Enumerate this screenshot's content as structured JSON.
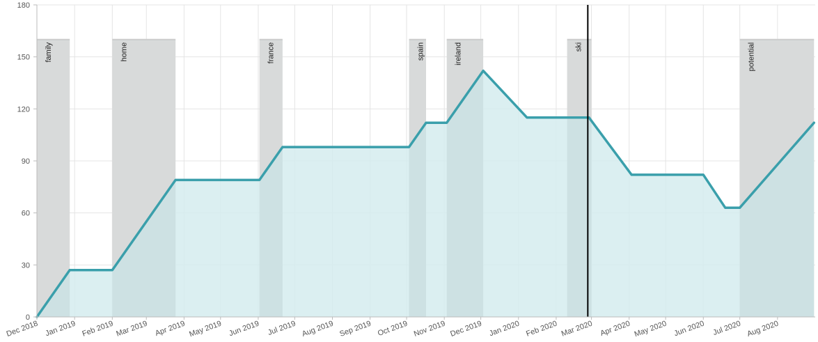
{
  "chart_data": {
    "type": "area",
    "title": "",
    "xlabel": "",
    "ylabel": "",
    "ylim": [
      0,
      180
    ],
    "yticks": [
      0,
      30,
      60,
      90,
      120,
      150,
      180
    ],
    "xlim": [
      "2018-12-01",
      "2020-09-01"
    ],
    "xticks": [
      {
        "date": "2018-12-01",
        "label": "Dec 2018"
      },
      {
        "date": "2019-01-01",
        "label": "Jan 2019"
      },
      {
        "date": "2019-02-01",
        "label": "Feb 2019"
      },
      {
        "date": "2019-03-01",
        "label": "Mar 2019"
      },
      {
        "date": "2019-04-01",
        "label": "Apr 2019"
      },
      {
        "date": "2019-05-01",
        "label": "May 2019"
      },
      {
        "date": "2019-06-01",
        "label": "Jun 2019"
      },
      {
        "date": "2019-07-01",
        "label": "Jul 2019"
      },
      {
        "date": "2019-08-01",
        "label": "Aug 2019"
      },
      {
        "date": "2019-09-01",
        "label": "Sep 2019"
      },
      {
        "date": "2019-10-01",
        "label": "Oct 2019"
      },
      {
        "date": "2019-11-01",
        "label": "Nov 2019"
      },
      {
        "date": "2019-12-01",
        "label": "Dec 2019"
      },
      {
        "date": "2020-01-01",
        "label": "Jan 2020"
      },
      {
        "date": "2020-02-01",
        "label": "Feb 2020"
      },
      {
        "date": "2020-03-01",
        "label": "Mar 2020"
      },
      {
        "date": "2020-04-01",
        "label": "Apr 2020"
      },
      {
        "date": "2020-05-01",
        "label": "May 2020"
      },
      {
        "date": "2020-06-01",
        "label": "Jun 2020"
      },
      {
        "date": "2020-07-01",
        "label": "Jul 2020"
      },
      {
        "date": "2020-08-01",
        "label": "Aug 2020"
      }
    ],
    "grid": true,
    "series": [
      {
        "color": "#3a9fab",
        "fill": "#d5ecee",
        "points": [
          {
            "x": "2018-12-01",
            "y": 0
          },
          {
            "x": "2018-12-28",
            "y": 27
          },
          {
            "x": "2019-02-01",
            "y": 27
          },
          {
            "x": "2019-03-25",
            "y": 79
          },
          {
            "x": "2019-06-02",
            "y": 79
          },
          {
            "x": "2019-06-21",
            "y": 98
          },
          {
            "x": "2019-10-03",
            "y": 98
          },
          {
            "x": "2019-10-17",
            "y": 112
          },
          {
            "x": "2019-11-03",
            "y": 112
          },
          {
            "x": "2019-12-03",
            "y": 142
          },
          {
            "x": "2020-01-08",
            "y": 115
          },
          {
            "x": "2020-02-28",
            "y": 115
          },
          {
            "x": "2020-04-03",
            "y": 82
          },
          {
            "x": "2020-06-01",
            "y": 82
          },
          {
            "x": "2020-06-19",
            "y": 63
          },
          {
            "x": "2020-07-01",
            "y": 63
          },
          {
            "x": "2020-08-31",
            "y": 112
          }
        ]
      }
    ],
    "periods": [
      {
        "label": "family",
        "start": "2018-12-01",
        "end": "2018-12-28"
      },
      {
        "label": "home",
        "start": "2019-02-01",
        "end": "2019-03-25"
      },
      {
        "label": "france",
        "start": "2019-06-02",
        "end": "2019-06-21"
      },
      {
        "label": "spain",
        "start": "2019-10-03",
        "end": "2019-10-17"
      },
      {
        "label": "ireland",
        "start": "2019-11-03",
        "end": "2019-12-03"
      },
      {
        "label": "ski",
        "start": "2020-02-10",
        "end": "2020-03-01"
      },
      {
        "label": "potential",
        "start": "2020-07-01",
        "end": "2020-08-31"
      }
    ],
    "period_top_value": 160,
    "period_fill": "#e3e3e3",
    "marker": {
      "date": "2020-02-27",
      "color": "#000000"
    }
  }
}
